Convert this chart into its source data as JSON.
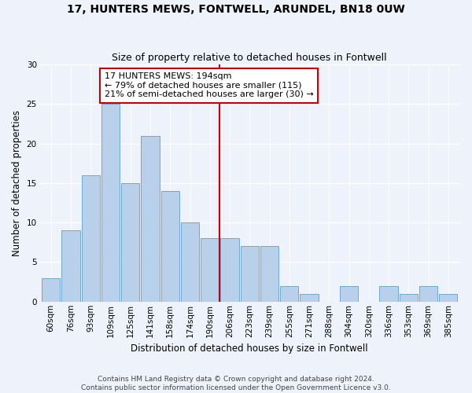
{
  "title": "17, HUNTERS MEWS, FONTWELL, ARUNDEL, BN18 0UW",
  "subtitle": "Size of property relative to detached houses in Fontwell",
  "xlabel": "Distribution of detached houses by size in Fontwell",
  "ylabel": "Number of detached properties",
  "bar_labels": [
    "60sqm",
    "76sqm",
    "93sqm",
    "109sqm",
    "125sqm",
    "141sqm",
    "158sqm",
    "174sqm",
    "190sqm",
    "206sqm",
    "223sqm",
    "239sqm",
    "255sqm",
    "271sqm",
    "288sqm",
    "304sqm",
    "320sqm",
    "336sqm",
    "353sqm",
    "369sqm",
    "385sqm"
  ],
  "bar_values": [
    3,
    9,
    16,
    25,
    15,
    21,
    14,
    10,
    8,
    8,
    7,
    7,
    2,
    1,
    0,
    2,
    0,
    2,
    1,
    2,
    1
  ],
  "bar_color": "#b8d0ea",
  "bar_edge_color": "#6fa8d0",
  "vline_x": 8.5,
  "vline_color": "#cc0000",
  "annotation_line1": "17 HUNTERS MEWS: 194sqm",
  "annotation_line2": "← 79% of detached houses are smaller (115)",
  "annotation_line3": "21% of semi-detached houses are larger (30) →",
  "annotation_box_color": "#ffffff",
  "annotation_box_edge_color": "#cc0000",
  "ylim": [
    0,
    30
  ],
  "yticks": [
    0,
    5,
    10,
    15,
    20,
    25,
    30
  ],
  "footer1": "Contains HM Land Registry data © Crown copyright and database right 2024.",
  "footer2": "Contains public sector information licensed under the Open Government Licence v3.0.",
  "bg_color": "#eef2fa",
  "title_fontsize": 10,
  "subtitle_fontsize": 9,
  "axis_label_fontsize": 8.5,
  "tick_fontsize": 7.5,
  "annotation_fontsize": 8,
  "footer_fontsize": 6.5
}
